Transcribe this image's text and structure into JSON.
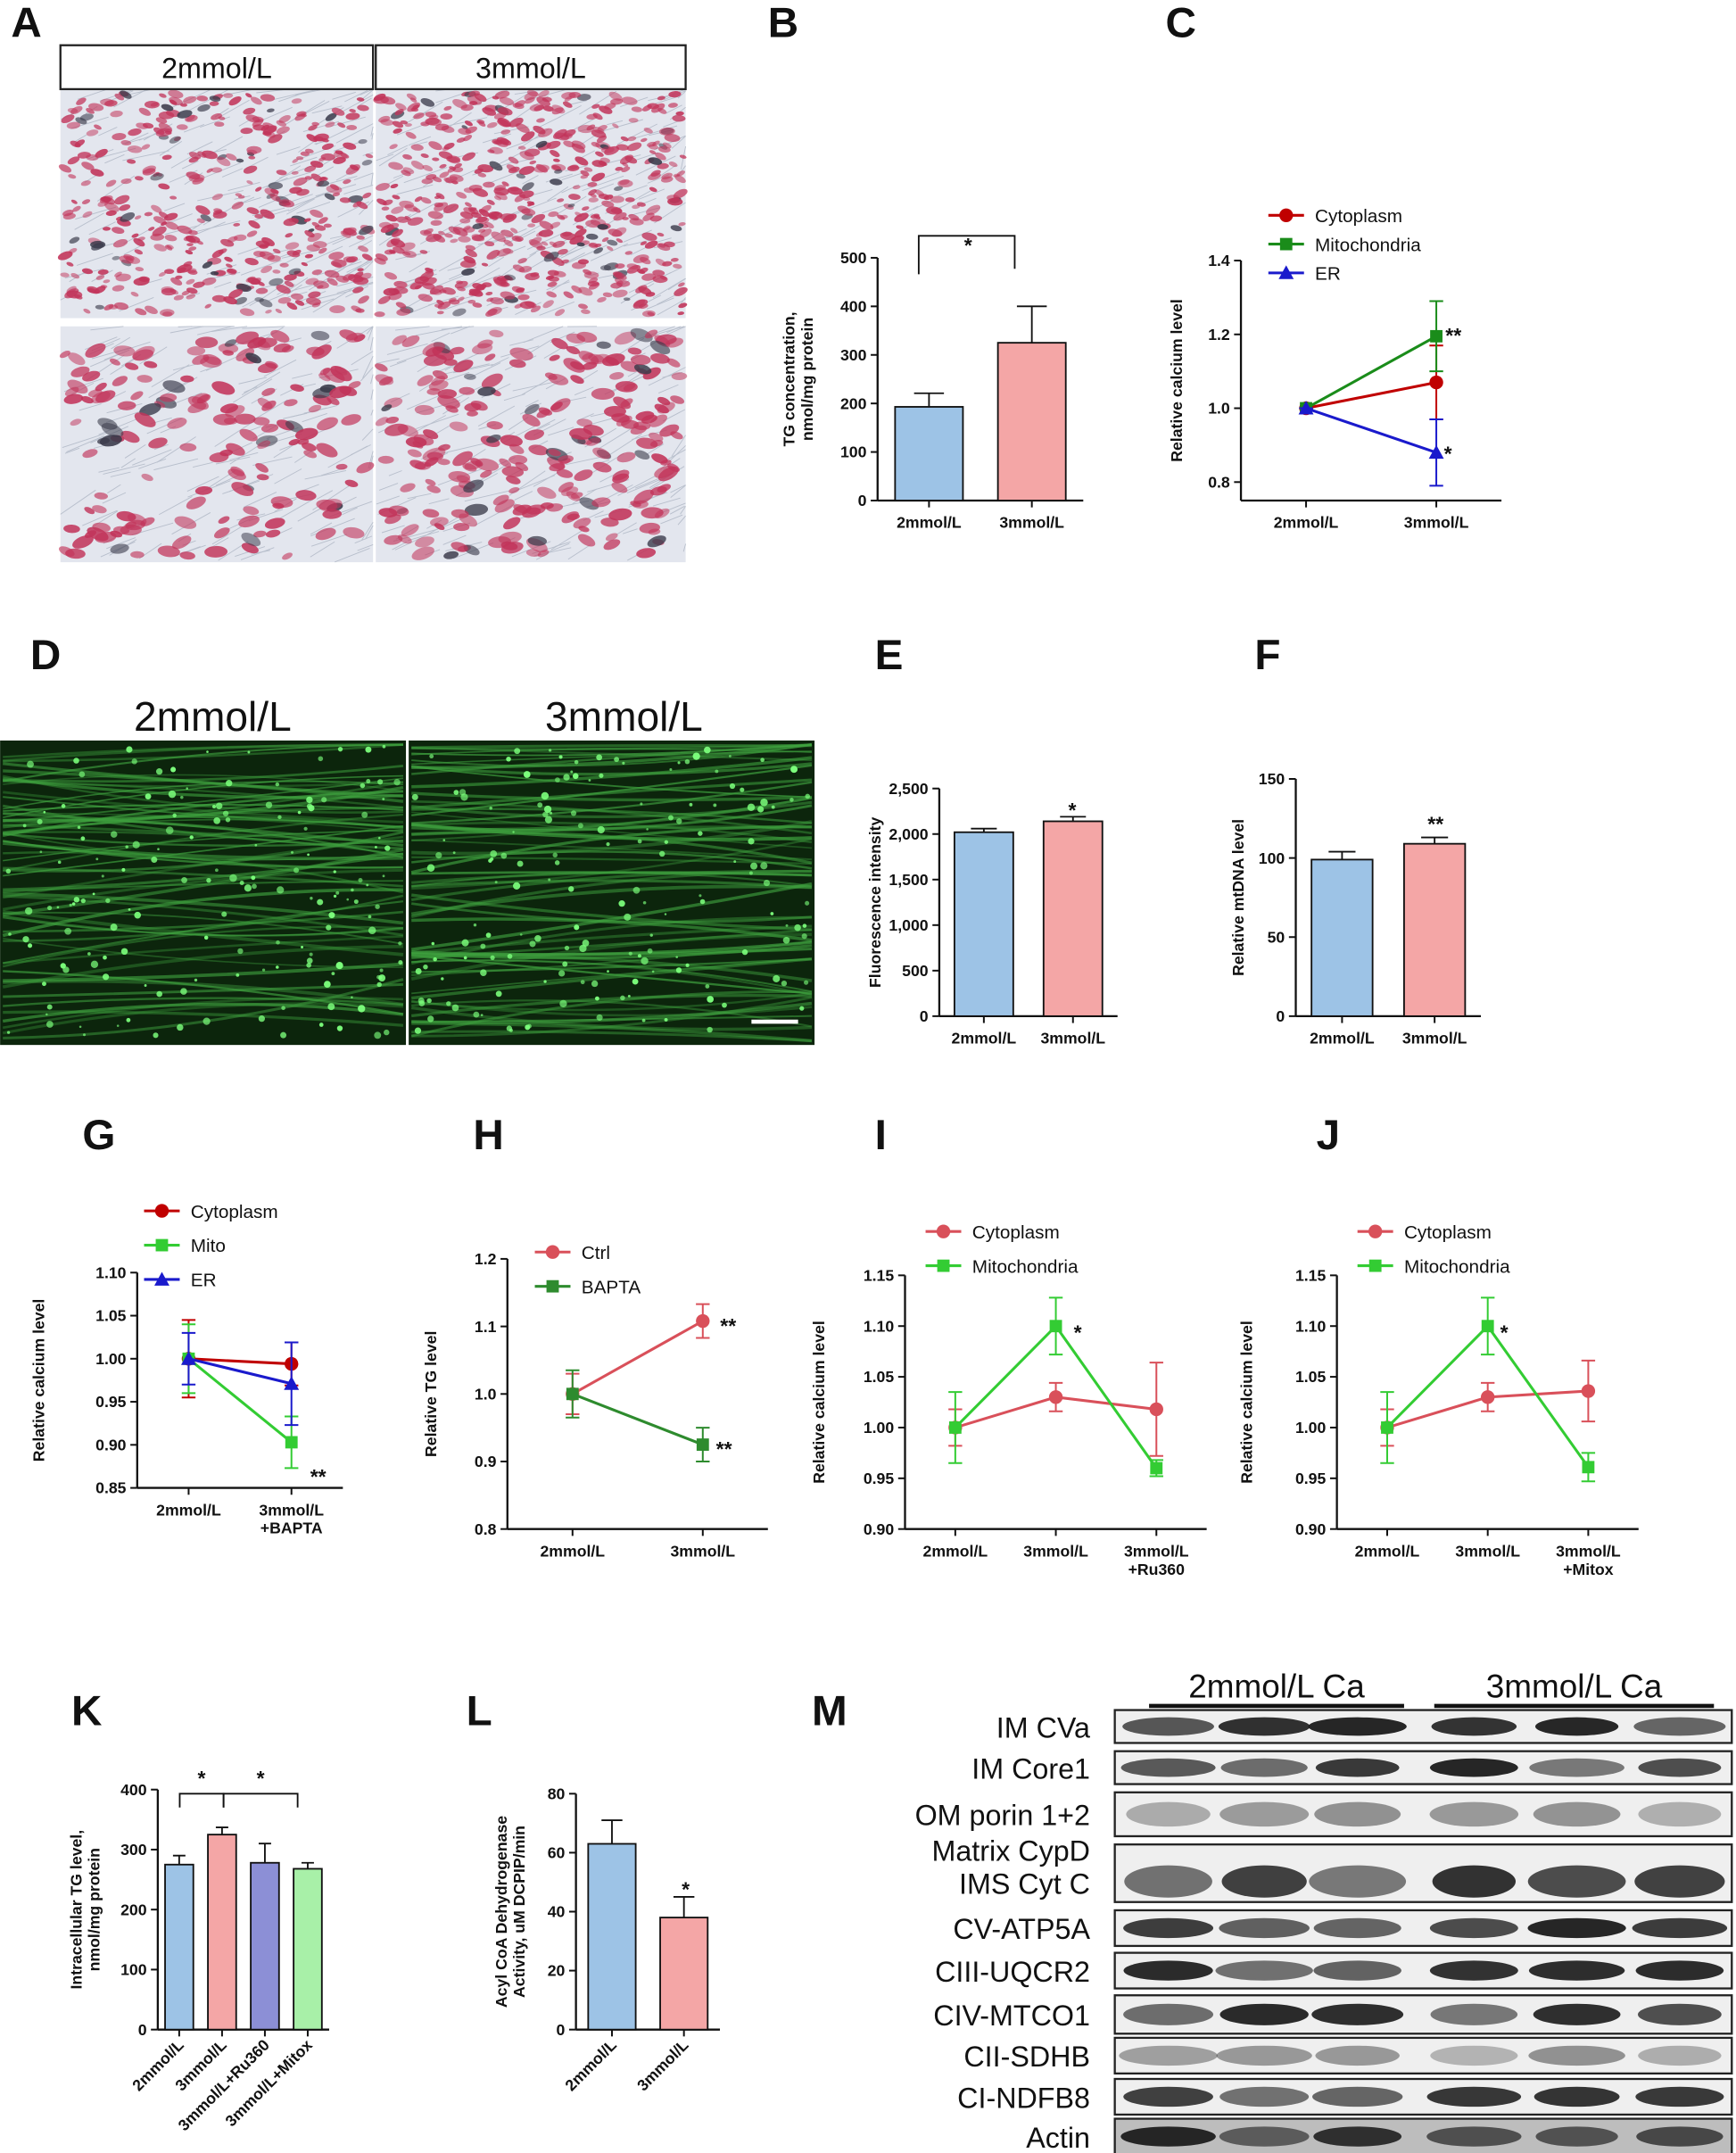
{
  "panel_labels": [
    "A",
    "B",
    "C",
    "D",
    "E",
    "F",
    "G",
    "H",
    "I",
    "J",
    "K",
    "L",
    "M"
  ],
  "images": {
    "A": {
      "labels": [
        "2mmol/L",
        "3mmol/L"
      ]
    },
    "D": {
      "labels": [
        "2mmol/L",
        "3mmol/L"
      ]
    }
  },
  "blot": {
    "groups": [
      "2mmol/L Ca",
      "3mmol/L Ca"
    ],
    "rows": [
      "IM CVa",
      "IM Core1",
      "OM porin 1+2",
      "Matrix CypD",
      "IMS Cyt C",
      "CV-ATP5A",
      "CIII-UQCR2",
      "CIV-MTCO1",
      "CII-SDHB",
      "CI-NDFB8",
      "Actin"
    ]
  },
  "chart_data": [
    {
      "type": "bar",
      "y_label": "TG concentration,\nnmol/mg protein",
      "categories": [
        "2mmol/L",
        "3mmol/L"
      ],
      "values": [
        193,
        325
      ],
      "errors": [
        28,
        75
      ],
      "colors": [
        "#9dc3e6",
        "#f4a6a6"
      ],
      "ylim": [
        0,
        500
      ],
      "yticks": [
        0,
        100,
        200,
        300,
        400,
        500
      ],
      "annotations": [
        "*"
      ]
    },
    {
      "type": "line",
      "y_label": "Relative calcium level",
      "categories": [
        "2mmol/L",
        "3mmol/L"
      ],
      "series": [
        {
          "name": "Cytoplasm",
          "color": "#c00000",
          "marker": "circle",
          "values": [
            1.0,
            1.07
          ],
          "errors": [
            0,
            0.1
          ]
        },
        {
          "name": "Mitochondria",
          "color": "#1a8c1a",
          "marker": "square",
          "values": [
            1.0,
            1.195
          ],
          "errors": [
            0,
            0.095
          ]
        },
        {
          "name": "ER",
          "color": "#1a1acc",
          "marker": "triangle",
          "values": [
            1.0,
            0.88
          ],
          "errors": [
            0,
            0.09
          ]
        }
      ],
      "ylim": [
        0.75,
        1.4
      ],
      "yticks": [
        0.8,
        {
          "value": 1.0,
          "label": "1.0"
        },
        1.2,
        1.4
      ],
      "annotations": [
        "**",
        "*"
      ]
    },
    {
      "type": "bar",
      "y_label": "Fluorescence intensity",
      "categories": [
        "2mmol/L",
        "3mmol/L"
      ],
      "values": [
        2020,
        2140
      ],
      "errors": [
        40,
        50
      ],
      "colors": [
        "#9dc3e6",
        "#f4a6a6"
      ],
      "ylim": [
        0,
        2500
      ],
      "yticks": [
        0,
        500,
        {
          "value": 1000,
          "label": "1,000"
        },
        {
          "value": 1500,
          "label": "1,500"
        },
        {
          "value": 2000,
          "label": "2,000"
        },
        {
          "value": 2500,
          "label": "2,500"
        }
      ],
      "annotations": [
        "*"
      ]
    },
    {
      "type": "bar",
      "y_label": "Relative mtDNA level",
      "categories": [
        "2mmol/L",
        "3mmol/L"
      ],
      "values": [
        99,
        109
      ],
      "errors": [
        5,
        4
      ],
      "colors": [
        "#9dc3e6",
        "#f4a6a6"
      ],
      "ylim": [
        0,
        150
      ],
      "yticks": [
        0,
        50,
        100,
        150
      ],
      "annotations": [
        "**"
      ]
    },
    {
      "type": "line",
      "y_label": "Relative calcium level",
      "categories": [
        "2mmol/L",
        "3mmol/L\n+BAPTA"
      ],
      "series": [
        {
          "name": "Cytoplasm",
          "color": "#c00000",
          "marker": "circle",
          "values": [
            1.0,
            0.994
          ],
          "errors": [
            0.045,
            0.025
          ]
        },
        {
          "name": "Mito",
          "color": "#33cc33",
          "marker": "square",
          "values": [
            1.0,
            0.903
          ],
          "errors": [
            0.04,
            0.03
          ]
        },
        {
          "name": "ER",
          "color": "#1a1acc",
          "marker": "triangle",
          "values": [
            1.0,
            0.971
          ],
          "errors": [
            0.03,
            0.048
          ]
        }
      ],
      "ylim": [
        0.85,
        1.1
      ],
      "yticks": [
        0.85,
        {
          "value": 0.9,
          "label": "0.90"
        },
        0.95,
        {
          "value": 1.0,
          "label": "1.00"
        },
        1.05,
        {
          "value": 1.1,
          "label": "1.10"
        }
      ],
      "annotations": [
        "**"
      ]
    },
    {
      "type": "line",
      "y_label": "Relative TG level",
      "categories": [
        "2mmol/L",
        "3mmol/L"
      ],
      "series": [
        {
          "name": "Ctrl",
          "color": "#d9505a",
          "marker": "circle",
          "values": [
            1.0,
            1.108
          ],
          "errors": [
            0.03,
            0.025
          ]
        },
        {
          "name": "BAPTA",
          "color": "#2e8b2e",
          "marker": "square",
          "values": [
            1.0,
            0.925
          ],
          "errors": [
            0.035,
            0.025
          ]
        }
      ],
      "ylim": [
        0.8,
        1.2
      ],
      "yticks": [
        0.8,
        0.9,
        {
          "value": 1.0,
          "label": "1.0"
        },
        1.1,
        1.2
      ],
      "annotations": [
        "**",
        "**"
      ]
    },
    {
      "type": "line",
      "y_label": "Relative calcium level",
      "categories": [
        "2mmol/L",
        "3mmol/L",
        "3mmol/L\n+Ru360"
      ],
      "series": [
        {
          "name": "Cytoplasm",
          "color": "#d9505a",
          "marker": "circle",
          "values": [
            1.0,
            1.03,
            1.018
          ],
          "errors": [
            0.018,
            0.014,
            0.046
          ]
        },
        {
          "name": "Mitochondria",
          "color": "#33cc33",
          "marker": "square",
          "values": [
            1.0,
            1.1,
            0.96
          ],
          "errors": [
            0.035,
            0.028,
            0.008
          ]
        }
      ],
      "ylim": [
        0.9,
        1.15
      ],
      "yticks": [
        {
          "value": 0.9,
          "label": "0.90"
        },
        0.95,
        {
          "value": 1.0,
          "label": "1.00"
        },
        1.05,
        {
          "value": 1.1,
          "label": "1.10"
        },
        1.15
      ],
      "annotations": [
        "*"
      ]
    },
    {
      "type": "line",
      "y_label": "Relative calcium level",
      "categories": [
        "2mmol/L",
        "3mmol/L",
        "3mmol/L\n+Mitox"
      ],
      "series": [
        {
          "name": "Cytoplasm",
          "color": "#d9505a",
          "marker": "circle",
          "values": [
            1.0,
            1.03,
            1.036
          ],
          "errors": [
            0.018,
            0.014,
            0.03
          ]
        },
        {
          "name": "Mitochondria",
          "color": "#33cc33",
          "marker": "square",
          "values": [
            1.0,
            1.1,
            0.961
          ],
          "errors": [
            0.035,
            0.028,
            0.014
          ]
        }
      ],
      "ylim": [
        0.9,
        1.15
      ],
      "yticks": [
        {
          "value": 0.9,
          "label": "0.90"
        },
        0.95,
        {
          "value": 1.0,
          "label": "1.00"
        },
        1.05,
        {
          "value": 1.1,
          "label": "1.10"
        },
        1.15
      ],
      "annotations": [
        "*"
      ]
    },
    {
      "type": "bar",
      "y_label": "Intracellular TG level,\nnmol/mg protein",
      "categories": [
        "2mmol/L",
        "3mmol/L",
        "3mmol/L+Ru360",
        "3mmol/L+Mitox"
      ],
      "values": [
        275,
        325,
        278,
        268
      ],
      "errors": [
        15,
        12,
        32,
        10
      ],
      "colors": [
        "#9dc3e6",
        "#f4a6a6",
        "#8c8fd6",
        "#a8f0a8"
      ],
      "ylim": [
        0,
        400
      ],
      "yticks": [
        0,
        100,
        200,
        300,
        400
      ],
      "annotations": [
        "*",
        "*"
      ]
    },
    {
      "type": "bar",
      "y_label": "Acyl CoA Dehydrogenase\nActivity, uM DCPIP/min",
      "categories": [
        "2mmol/L",
        "3mmol/L"
      ],
      "values": [
        63,
        38
      ],
      "errors": [
        8,
        7
      ],
      "colors": [
        "#9dc3e6",
        "#f4a6a6"
      ],
      "ylim": [
        0,
        80
      ],
      "yticks": [
        0,
        20,
        40,
        60,
        80
      ],
      "annotations": [
        "*"
      ]
    }
  ]
}
